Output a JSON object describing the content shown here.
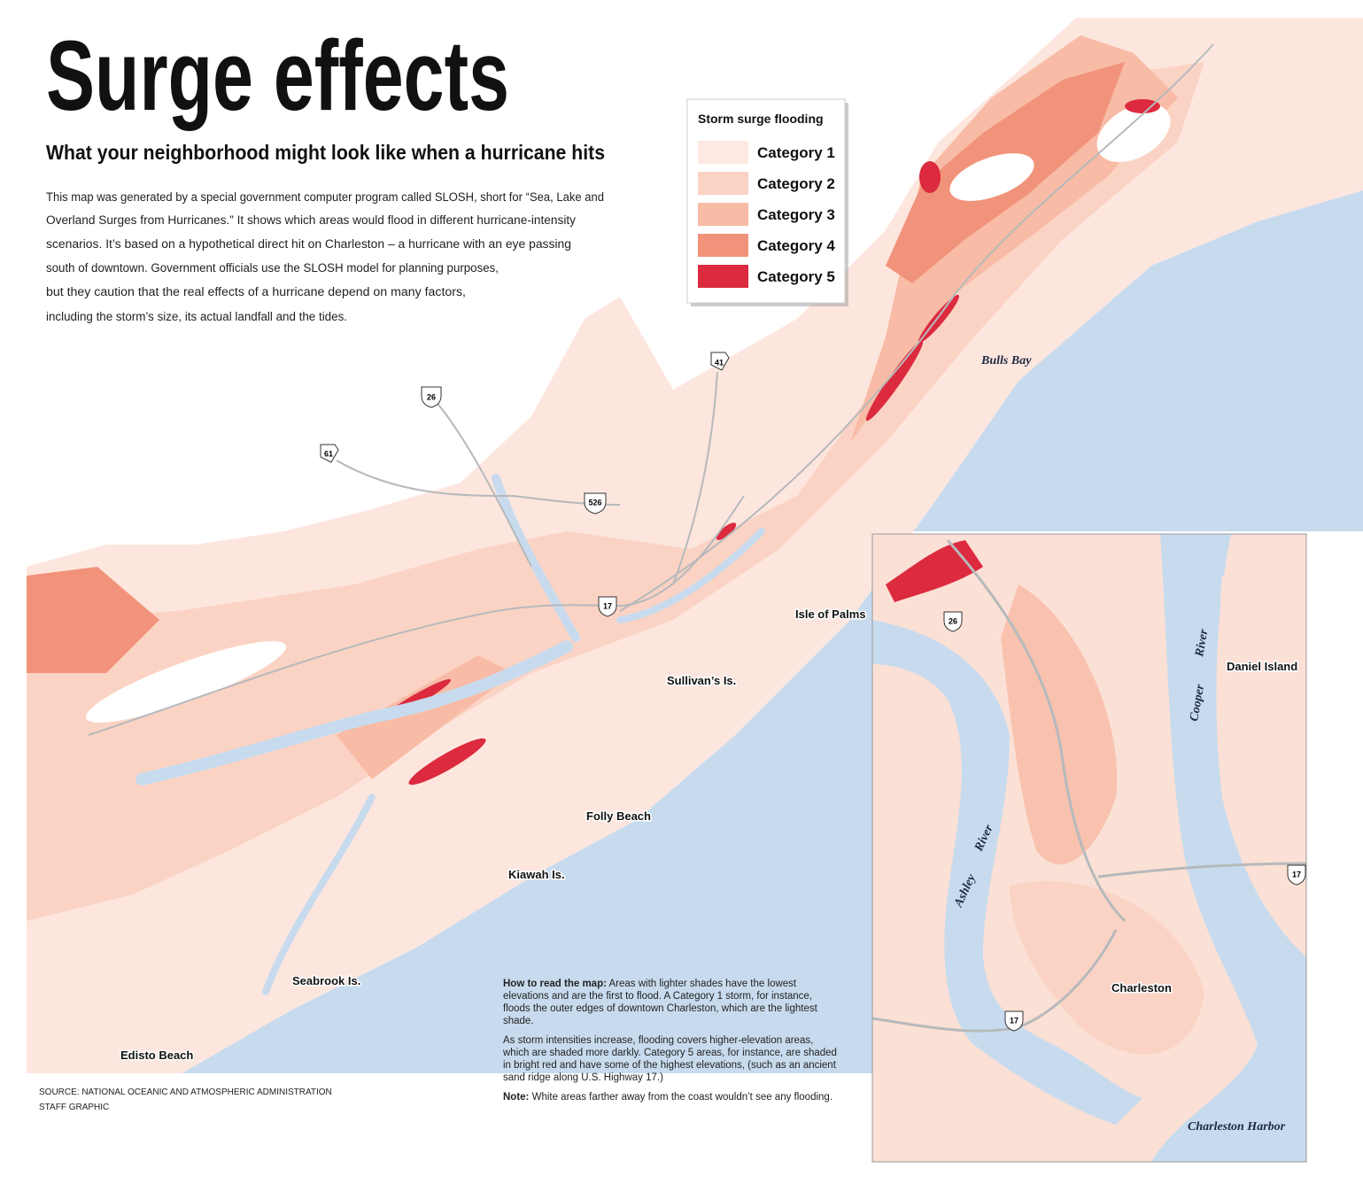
{
  "header": {
    "title": "Surge effects",
    "subtitle": "What your neighborhood might look like when a hurricane hits",
    "intro": [
      "This map was generated by a special government computer program called SLOSH, short for “Sea, Lake and",
      "Overland Surges from Hurricanes.” It shows which areas would flood in different hurricane-intensity",
      "scenarios. It’s based on a hypothetical direct hit on Charleston – a hurricane with an eye passing",
      "south of downtown. Government officials use the SLOSH model for planning purposes,",
      "but they caution that the real effects of a hurricane depend on many factors,",
      "including the storm’s size, its actual landfall and the tides."
    ]
  },
  "legend": {
    "title": "Storm surge flooding",
    "items": [
      {
        "label": "Category 1",
        "color": "#fde9e2"
      },
      {
        "label": "Category 2",
        "color": "#fbd3c4"
      },
      {
        "label": "Category 3",
        "color": "#f8bba5"
      },
      {
        "label": "Category 4",
        "color": "#f1937a"
      },
      {
        "label": "Category 5",
        "color": "#dc2a3e"
      }
    ]
  },
  "map": {
    "places": [
      {
        "label": "Bulls Bay"
      },
      {
        "label": "Isle of Palms"
      },
      {
        "label": "Sullivan’s Is."
      },
      {
        "label": "Folly Beach"
      },
      {
        "label": "Kiawah Is."
      },
      {
        "label": "Seabrook Is."
      },
      {
        "label": "Edisto Beach"
      }
    ],
    "highways": [
      {
        "label": "26"
      },
      {
        "label": "41"
      },
      {
        "label": "61"
      },
      {
        "label": "526"
      },
      {
        "label": "17"
      }
    ]
  },
  "inset": {
    "places": [
      {
        "label": "Daniel Island"
      },
      {
        "label": "Cooper"
      },
      {
        "label": "River"
      },
      {
        "label": "Ashley"
      },
      {
        "label": "River"
      },
      {
        "label": "Charleston"
      },
      {
        "label": "Charleston Harbor"
      }
    ],
    "highways": [
      {
        "label": "26"
      },
      {
        "label": "17"
      },
      {
        "label": "17"
      }
    ]
  },
  "notes": {
    "how_to_read": {
      "heading": "How to read the map:",
      "text": "Areas with lighter shades have the lowest elevations and are the first to flood.  A Category 1 storm, for instance, floods the outer edges of downtown Charleston, which are the lightest shade."
    },
    "paragraph": "As storm intensities increase, flooding covers higher-elevation areas, which are shaded more darkly. Category 5 areas, for instance, are shaded in bright red and have some of the highest elevations, (such as an ancient sand ridge along U.S. Highway 17.)",
    "note": {
      "heading": "Note:",
      "text": "White areas farther away from the coast wouldn’t see any flooding."
    }
  },
  "source": [
    "SOURCE: NATIONAL OCEANIC AND ATMOSPHERIC ADMINISTRATION",
    "STAFF GRAPHIC"
  ]
}
